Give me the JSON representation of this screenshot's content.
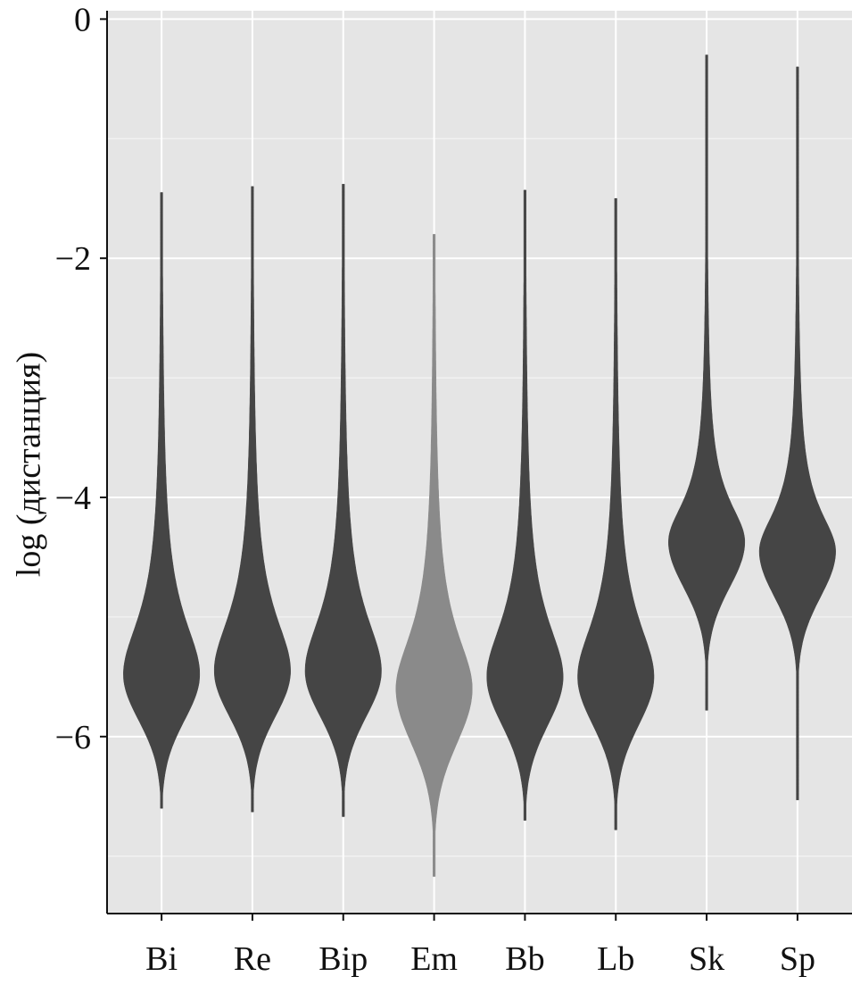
{
  "chart_data": {
    "type": "violin",
    "y_label": "log (дистанция)",
    "categories": [
      "Bi",
      "Re",
      "Bip",
      "Em",
      "Bb",
      "Lb",
      "Sk",
      "Sp"
    ],
    "series": [
      {
        "name": "Bi",
        "color": "#454545",
        "max": -1.45,
        "min": -6.6,
        "mode": -5.48,
        "upper_scale": 0.6,
        "lower_scale": 0.38
      },
      {
        "name": "Re",
        "color": "#454545",
        "max": -1.4,
        "min": -6.63,
        "mode": -5.45,
        "upper_scale": 0.6,
        "lower_scale": 0.38
      },
      {
        "name": "Bip",
        "color": "#454545",
        "max": -1.38,
        "min": -6.67,
        "mode": -5.45,
        "upper_scale": 0.6,
        "lower_scale": 0.38
      },
      {
        "name": "Em",
        "color": "#8a8a8a",
        "max": -1.8,
        "min": -7.17,
        "mode": -5.6,
        "upper_scale": 0.6,
        "lower_scale": 0.45
      },
      {
        "name": "Bb",
        "color": "#454545",
        "max": -1.43,
        "min": -6.7,
        "mode": -5.5,
        "upper_scale": 0.6,
        "lower_scale": 0.4
      },
      {
        "name": "Lb",
        "color": "#454545",
        "max": -1.5,
        "min": -6.78,
        "mode": -5.5,
        "upper_scale": 0.6,
        "lower_scale": 0.4
      },
      {
        "name": "Sk",
        "color": "#454545",
        "max": -0.3,
        "min": -5.78,
        "mode": -4.37,
        "upper_scale": 0.43,
        "lower_scale": 0.38
      },
      {
        "name": "Sp",
        "color": "#454545",
        "max": -0.4,
        "min": -6.53,
        "mode": -4.45,
        "upper_scale": 0.43,
        "lower_scale": 0.38
      }
    ],
    "ylim": [
      -7.48,
      0.07
    ],
    "yticks": [
      {
        "value": 0,
        "label": "0"
      },
      {
        "value": -2,
        "label": "−2"
      },
      {
        "value": -4,
        "label": "−4"
      },
      {
        "value": -6,
        "label": "−6"
      }
    ],
    "minor_yticks": [
      -1,
      -3,
      -5,
      -7
    ],
    "grid": true
  }
}
